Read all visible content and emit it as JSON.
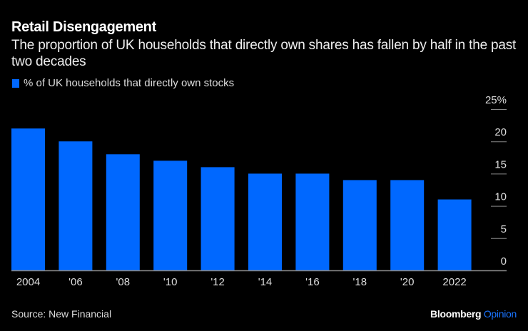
{
  "header": {
    "title": "Retail Disengagement",
    "subtitle": "The proportion of UK households that directly own shares has fallen by half in the past two decades"
  },
  "footer": {
    "source": "Source: New Financial",
    "brand_main": "Bloomberg",
    "brand_accent": "Opinion"
  },
  "colors": {
    "bar": "#0068ff",
    "background": "#000000",
    "axis": "#888888",
    "accent": "#1a74ff"
  },
  "chart_data": {
    "type": "bar",
    "title": "Retail Disengagement",
    "subtitle": "The proportion of UK households that directly own shares has fallen by half in the past two decades",
    "legend": [
      "% of UK households that directly own stocks"
    ],
    "legend_position": "top-left",
    "categories": [
      "2004",
      "'06",
      "'08",
      "'10",
      "'12",
      "'14",
      "'16",
      "'18",
      "'20",
      "2022"
    ],
    "series": [
      {
        "name": "% of UK households that directly own stocks",
        "values": [
          22,
          20,
          18,
          17,
          16,
          15,
          15,
          14,
          14,
          11
        ]
      }
    ],
    "xlabel": "",
    "ylabel": "",
    "ylim": [
      0,
      25
    ],
    "yticks": [
      0,
      5,
      10,
      15,
      20,
      25
    ],
    "ytick_labels": [
      "0",
      "5",
      "10",
      "15",
      "20",
      "25%"
    ],
    "y_axis_side": "right",
    "grid": false
  }
}
